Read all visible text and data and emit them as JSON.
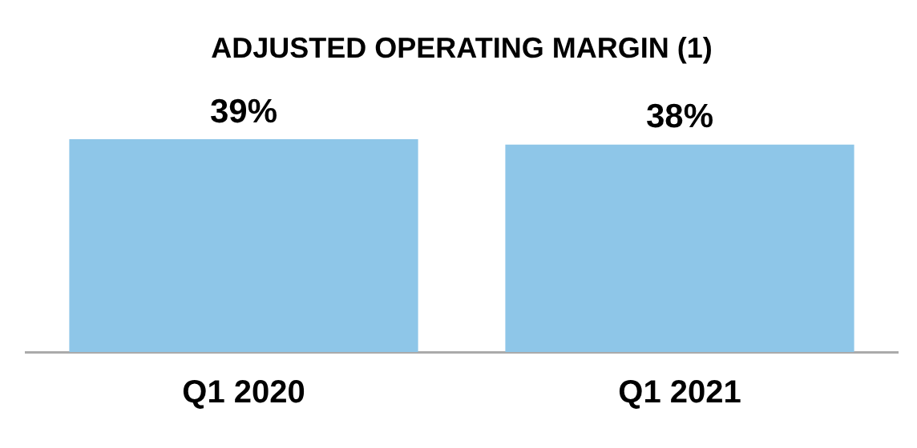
{
  "chart_data": {
    "type": "bar",
    "title": "ADJUSTED OPERATING MARGIN (1)",
    "categories": [
      "Q1 2020",
      "Q1 2021"
    ],
    "values": [
      39,
      38
    ],
    "value_labels": [
      "39%",
      "38%"
    ],
    "color": "#8ec6e8",
    "legend": false,
    "grid": false
  }
}
